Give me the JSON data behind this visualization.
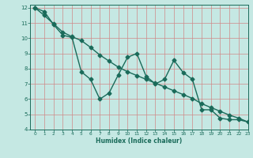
{
  "xlabel": "Humidex (Indice chaleur)",
  "xlim": [
    -0.5,
    23
  ],
  "ylim": [
    4,
    12.2
  ],
  "yticks": [
    4,
    5,
    6,
    7,
    8,
    9,
    10,
    11,
    12
  ],
  "xticks": [
    0,
    1,
    2,
    3,
    4,
    5,
    6,
    7,
    8,
    9,
    10,
    11,
    12,
    13,
    14,
    15,
    16,
    17,
    18,
    19,
    20,
    21,
    22,
    23
  ],
  "background_color": "#c5e8e3",
  "grid_color": "#d08888",
  "line_color": "#1a6b5a",
  "line1_x": [
    0,
    1,
    2,
    3,
    4,
    5,
    6,
    7,
    8,
    9,
    10,
    11,
    12,
    13,
    14,
    15,
    16,
    17,
    18,
    19,
    20,
    21,
    22,
    23
  ],
  "line1_y": [
    12,
    11.75,
    10.9,
    10.2,
    10.05,
    7.8,
    7.3,
    6.0,
    6.4,
    7.6,
    8.75,
    9.0,
    7.5,
    7.0,
    7.3,
    8.55,
    7.75,
    7.3,
    5.3,
    5.3,
    4.75,
    4.65,
    4.65,
    4.5
  ],
  "line2_x": [
    0,
    1,
    2,
    3,
    4,
    5,
    6,
    7,
    8,
    9,
    10,
    11,
    12,
    13,
    14,
    15,
    16,
    17,
    18,
    19,
    20,
    21,
    22,
    23
  ],
  "line2_y": [
    12,
    11.5,
    10.95,
    10.4,
    10.1,
    9.85,
    9.4,
    8.9,
    8.5,
    8.1,
    7.8,
    7.55,
    7.3,
    7.05,
    6.8,
    6.55,
    6.3,
    6.05,
    5.7,
    5.45,
    5.2,
    4.95,
    4.75,
    4.5
  ],
  "marker_size": 2.5,
  "line_width": 1.0
}
